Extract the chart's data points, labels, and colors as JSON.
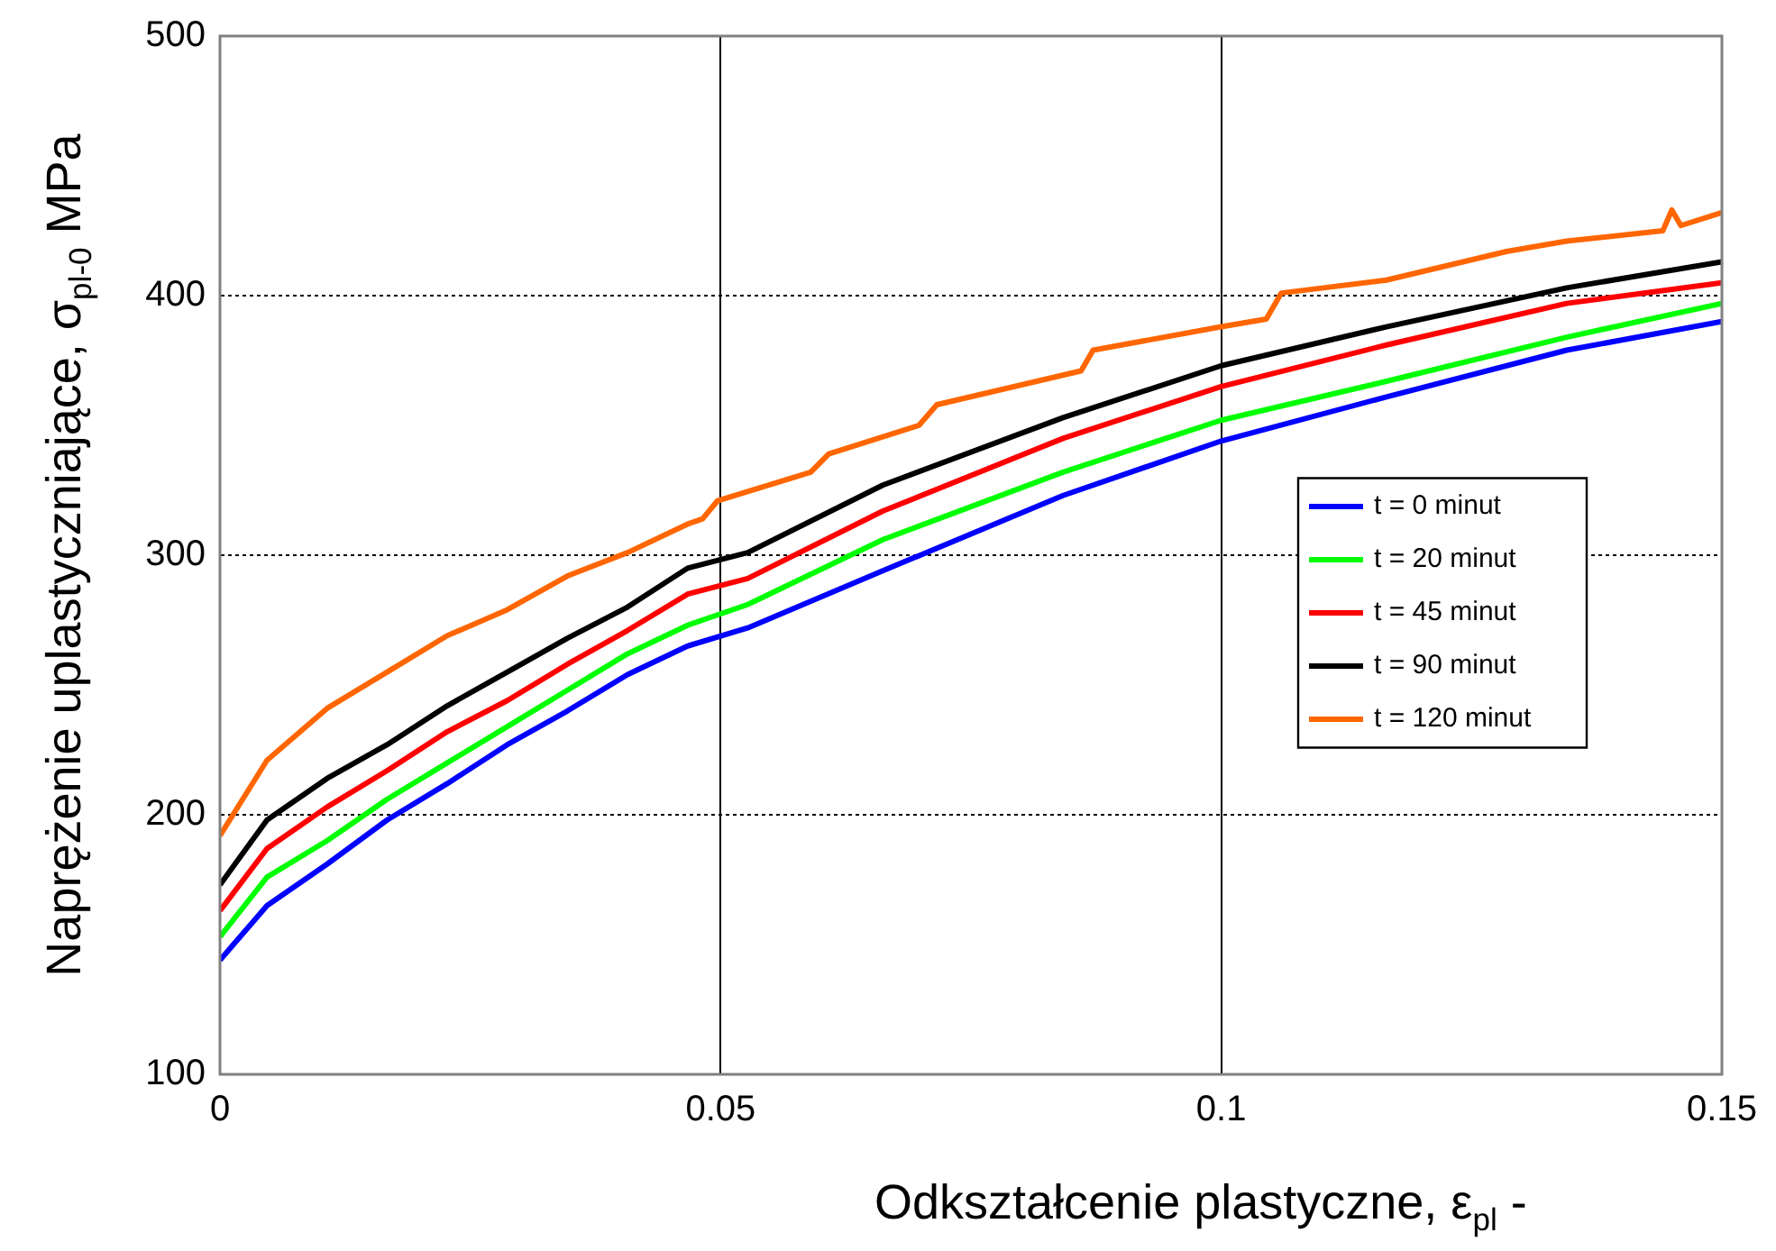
{
  "chart_data": {
    "type": "line",
    "xlabel": "Odkształcenie plastyczne, ε$_{pl}$ -",
    "ylabel": "Naprężenie uplastyczniające, σ$_{pl-0}$  MPa",
    "x": [
      0,
      0.0047,
      0.0107,
      0.0167,
      0.0227,
      0.0287,
      0.0347,
      0.0407,
      0.0467,
      0.0527,
      0.0662,
      0.0842,
      0.1,
      0.1165,
      0.1345,
      0.15
    ],
    "xlim": [
      0,
      0.15
    ],
    "xticks": [
      0,
      0.05,
      0.1,
      0.15
    ],
    "ylim": [
      100,
      500
    ],
    "yticks": [
      100,
      200,
      300,
      400,
      500
    ],
    "grid": true,
    "legend": "right",
    "marker": "none",
    "line_style": "solid",
    "series": [
      {
        "name": "t = 0 minut",
        "color": "#0000ff",
        "values": [
          144,
          165,
          181,
          198,
          212,
          227,
          240,
          254,
          265,
          272,
          294,
          323,
          344,
          361,
          379,
          390
        ]
      },
      {
        "name": "t = 20 minut",
        "color": "#00ff00",
        "values": [
          153,
          176,
          190,
          206,
          220,
          234,
          248,
          262,
          273,
          281,
          306,
          332,
          352,
          367,
          384,
          397
        ]
      },
      {
        "name": "t = 45 minut",
        "color": "#ff0000",
        "values": [
          163,
          187,
          203,
          217,
          232,
          244,
          258,
          271,
          285,
          291,
          317,
          345,
          365,
          381,
          397,
          405
        ]
      },
      {
        "name": "t = 90 minut",
        "color": "#000000",
        "values": [
          173,
          198,
          214,
          227,
          242,
          255,
          268,
          280,
          295,
          301,
          327,
          353,
          373,
          388,
          403,
          413
        ]
      },
      {
        "name": "t = 120 minut",
        "color": "#ff6600",
        "x": [
          0,
          0.0047,
          0.0107,
          0.0167,
          0.0227,
          0.0287,
          0.0347,
          0.0407,
          0.0467,
          0.0482,
          0.0497,
          0.059,
          0.0608,
          0.0698,
          0.0716,
          0.086,
          0.0872,
          0.1,
          0.1045,
          0.106,
          0.1165,
          0.1285,
          0.1345,
          0.1441,
          0.145,
          0.1459,
          0.15
        ],
        "values": [
          192,
          221,
          241,
          255,
          269,
          279,
          292,
          301,
          312,
          314,
          321,
          332,
          339,
          350,
          358,
          371,
          379,
          388,
          391,
          401,
          406,
          417,
          421,
          425,
          433,
          427,
          432
        ]
      }
    ]
  }
}
